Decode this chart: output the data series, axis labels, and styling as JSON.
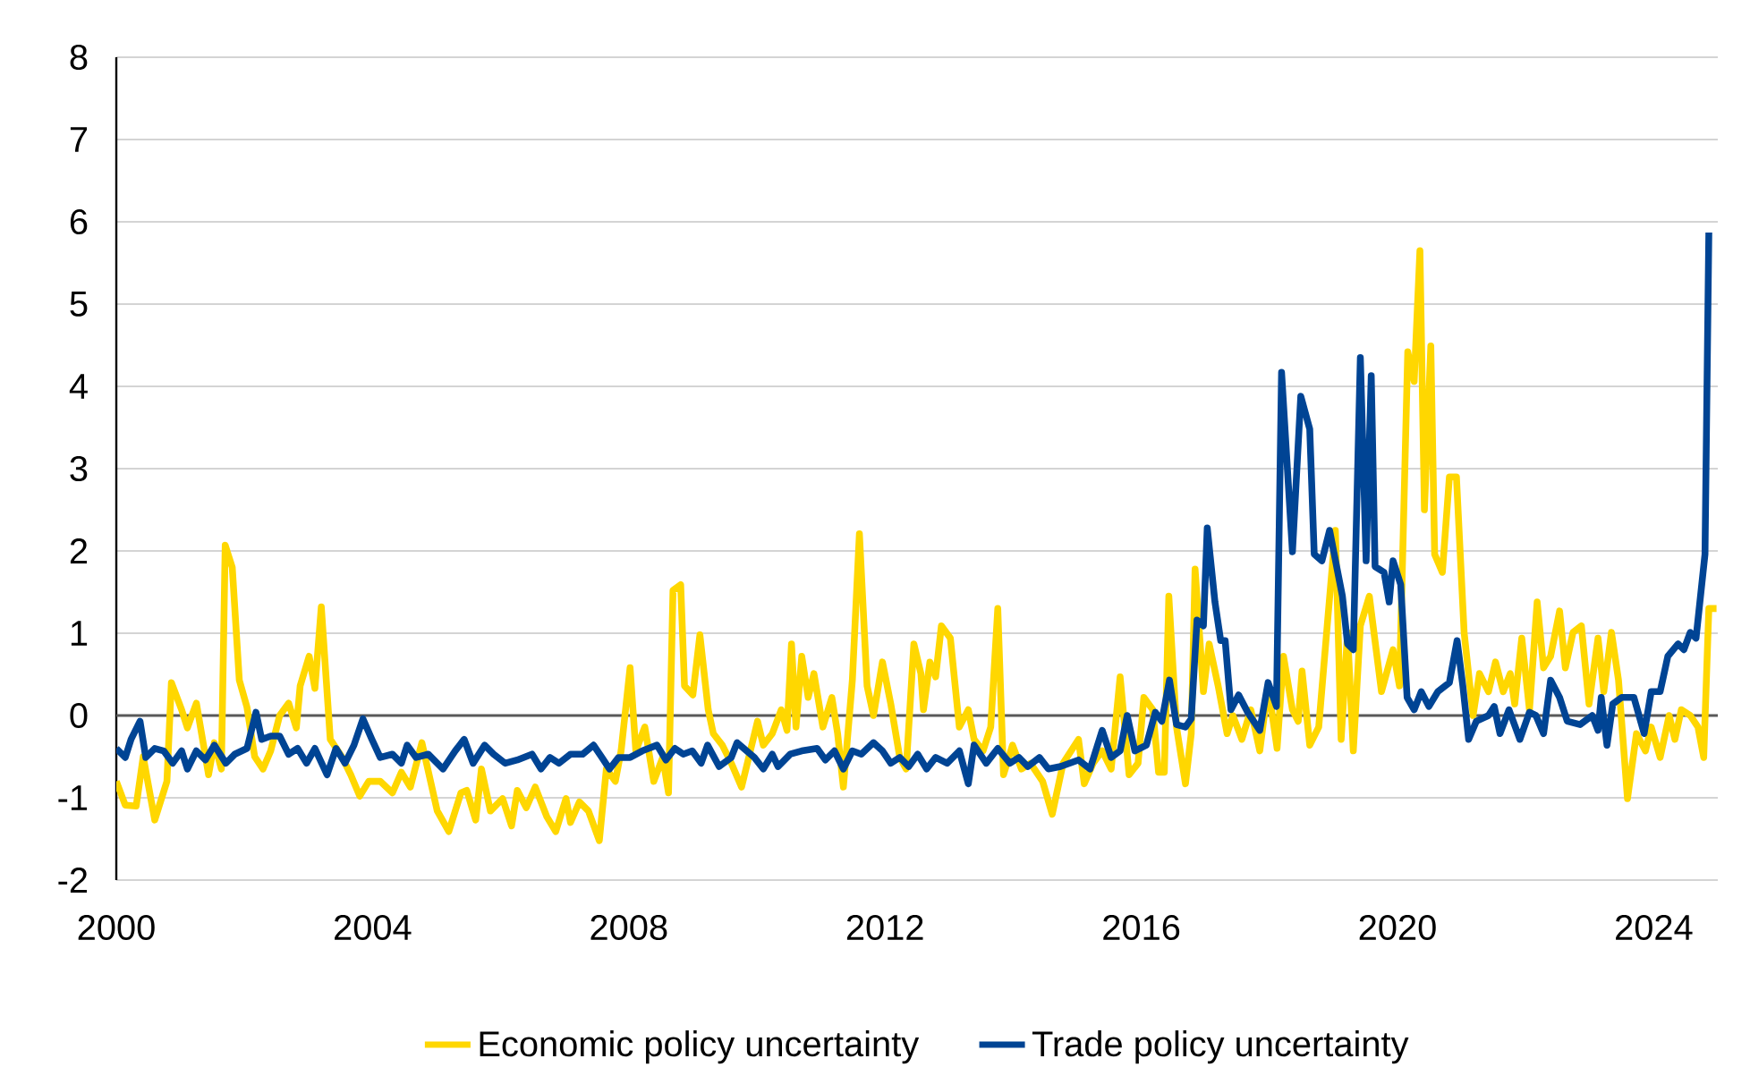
{
  "chart_data": {
    "type": "line",
    "xlim": [
      2000,
      2025
    ],
    "xticks": [
      2000,
      2004,
      2008,
      2012,
      2016,
      2020,
      2024
    ],
    "ylim": [
      -2,
      8
    ],
    "yticks": [
      -2,
      -1,
      0,
      1,
      2,
      3,
      4,
      5,
      6,
      7,
      8
    ],
    "grid": "y",
    "legend": "bottom",
    "ref_lines": [
      {
        "axis": "y",
        "value": 0,
        "color": "#595959"
      }
    ],
    "series": [
      {
        "name": "Economic policy uncertainty",
        "color": "#ffd700",
        "x": [
          2000.0,
          2000.14,
          2000.31,
          2000.42,
          2000.6,
          2000.79,
          2000.86,
          2001.02,
          2001.11,
          2001.25,
          2001.44,
          2001.53,
          2001.64,
          2001.7,
          2001.81,
          2001.92,
          2002.04,
          2002.16,
          2002.29,
          2002.41,
          2002.55,
          2002.69,
          2002.81,
          2002.87,
          2003.01,
          2003.1,
          2003.2,
          2003.34,
          2003.52,
          2003.66,
          2003.8,
          2003.94,
          2004.12,
          2004.31,
          2004.45,
          2004.59,
          2004.77,
          2005.01,
          2005.19,
          2005.38,
          2005.47,
          2005.61,
          2005.7,
          2005.84,
          2006.03,
          2006.17,
          2006.26,
          2006.4,
          2006.54,
          2006.72,
          2006.86,
          2007.02,
          2007.09,
          2007.23,
          2007.37,
          2007.54,
          2007.65,
          2007.79,
          2007.88,
          2008.02,
          2008.11,
          2008.25,
          2008.39,
          2008.53,
          2008.62,
          2008.69,
          2008.81,
          2008.87,
          2009.0,
          2009.11,
          2009.24,
          2009.32,
          2009.46,
          2009.6,
          2009.76,
          2010.01,
          2010.1,
          2010.24,
          2010.38,
          2010.47,
          2010.54,
          2010.61,
          2010.7,
          2010.8,
          2010.89,
          2011.03,
          2011.17,
          2011.26,
          2011.35,
          2011.49,
          2011.6,
          2011.72,
          2011.82,
          2011.96,
          2012.09,
          2012.23,
          2012.33,
          2012.45,
          2012.56,
          2012.6,
          2012.7,
          2012.79,
          2012.88,
          2013.02,
          2013.16,
          2013.3,
          2013.39,
          2013.53,
          2013.65,
          2013.76,
          2013.85,
          2013.99,
          2014.13,
          2014.27,
          2014.46,
          2014.61,
          2014.78,
          2015.02,
          2015.11,
          2015.25,
          2015.39,
          2015.53,
          2015.67,
          2015.81,
          2015.95,
          2016.04,
          2016.18,
          2016.27,
          2016.36,
          2016.43,
          2016.55,
          2016.69,
          2016.78,
          2016.84,
          2016.97,
          2017.06,
          2017.2,
          2017.34,
          2017.43,
          2017.57,
          2017.71,
          2017.85,
          2017.98,
          2018.12,
          2018.22,
          2018.36,
          2018.45,
          2018.51,
          2018.63,
          2018.77,
          2018.91,
          2019.03,
          2019.12,
          2019.22,
          2019.31,
          2019.42,
          2019.56,
          2019.75,
          2019.93,
          2020.03,
          2020.16,
          2020.26,
          2020.35,
          2020.42,
          2020.52,
          2020.58,
          2020.7,
          2020.81,
          2020.92,
          2021.04,
          2021.18,
          2021.28,
          2021.42,
          2021.53,
          2021.65,
          2021.76,
          2021.83,
          2021.94,
          2022.06,
          2022.18,
          2022.28,
          2022.39,
          2022.53,
          2022.62,
          2022.74,
          2022.87,
          2022.99,
          2023.13,
          2023.22,
          2023.34,
          2023.45,
          2023.59,
          2023.73,
          2023.87,
          2023.96,
          2024.1,
          2024.24,
          2024.33,
          2024.43,
          2024.57,
          2024.69,
          2024.78,
          2024.86,
          2024.98
        ],
        "values": [
          -0.8,
          -1.09,
          -1.1,
          -0.5,
          -1.27,
          -0.8,
          0.4,
          0.07,
          -0.15,
          0.15,
          -0.72,
          -0.33,
          -0.65,
          2.07,
          1.8,
          0.43,
          0.1,
          -0.5,
          -0.65,
          -0.43,
          0,
          0.15,
          -0.15,
          0.36,
          0.72,
          0.33,
          1.32,
          -0.29,
          -0.5,
          -0.72,
          -0.98,
          -0.8,
          -0.8,
          -0.94,
          -0.69,
          -0.87,
          -0.33,
          -1.16,
          -1.41,
          -0.94,
          -0.91,
          -1.27,
          -0.65,
          -1.16,
          -1.01,
          -1.34,
          -0.91,
          -1.12,
          -0.87,
          -1.23,
          -1.41,
          -1.01,
          -1.3,
          -1.05,
          -1.16,
          -1.52,
          -0.65,
          -0.8,
          -0.43,
          0.58,
          -0.43,
          -0.14,
          -0.8,
          -0.51,
          -0.94,
          1.52,
          1.59,
          0.36,
          0.25,
          0.98,
          0.07,
          -0.22,
          -0.36,
          -0.58,
          -0.87,
          -0.07,
          -0.36,
          -0.22,
          0.07,
          -0.18,
          0.87,
          -0.14,
          0.72,
          0.22,
          0.51,
          -0.14,
          0.22,
          -0.22,
          -0.87,
          0.43,
          2.21,
          0.36,
          0,
          0.65,
          0.14,
          -0.51,
          -0.65,
          0.87,
          0.51,
          0.07,
          0.65,
          0.47,
          1.09,
          0.94,
          -0.14,
          0.07,
          -0.29,
          -0.43,
          -0.14,
          1.3,
          -0.72,
          -0.36,
          -0.65,
          -0.58,
          -0.8,
          -1.2,
          -0.58,
          -0.29,
          -0.83,
          -0.58,
          -0.43,
          -0.65,
          0.47,
          -0.72,
          -0.58,
          0.22,
          0.07,
          -0.69,
          -0.69,
          1.45,
          -0.14,
          -0.83,
          -0.22,
          1.78,
          0.29,
          0.87,
          0.36,
          -0.22,
          0,
          -0.29,
          0.07,
          -0.43,
          0.36,
          -0.4,
          0.72,
          0.07,
          -0.07,
          0.54,
          -0.36,
          -0.14,
          1.16,
          2.25,
          -0.29,
          1.01,
          -0.43,
          1.09,
          1.45,
          0.29,
          0.8,
          0.36,
          4.42,
          4.06,
          5.65,
          2.5,
          4.49,
          1.96,
          1.74,
          2.9,
          2.9,
          1.01,
          0,
          0.51,
          0.29,
          0.65,
          0.29,
          0.51,
          0.14,
          0.94,
          0.07,
          1.38,
          0.58,
          0.72,
          1.27,
          0.58,
          1.01,
          1.09,
          0.14,
          0.94,
          0.29,
          1.01,
          0.43,
          -1.01,
          -0.22,
          -0.43,
          -0.14,
          -0.51,
          0,
          -0.29,
          0.07,
          0,
          -0.14,
          -0.51,
          1.3,
          1.3
        ]
      },
      {
        "name": "Trade policy uncertainty",
        "color": "#004494",
        "x": [
          2000.0,
          2000.14,
          2000.23,
          2000.37,
          2000.46,
          2000.6,
          2000.74,
          2000.88,
          2001.02,
          2001.11,
          2001.25,
          2001.39,
          2001.53,
          2001.71,
          2001.85,
          2002.04,
          2002.18,
          2002.27,
          2002.41,
          2002.55,
          2002.69,
          2002.83,
          2002.97,
          2003.1,
          2003.29,
          2003.43,
          2003.57,
          2003.71,
          2003.85,
          2003.99,
          2004.12,
          2004.31,
          2004.45,
          2004.54,
          2004.68,
          2004.87,
          2005.1,
          2005.29,
          2005.43,
          2005.57,
          2005.75,
          2005.89,
          2006.07,
          2006.26,
          2006.49,
          2006.63,
          2006.77,
          2006.91,
          2007.09,
          2007.28,
          2007.45,
          2007.58,
          2007.7,
          2007.84,
          2008.02,
          2008.21,
          2008.44,
          2008.58,
          2008.72,
          2008.85,
          2008.99,
          2009.13,
          2009.23,
          2009.41,
          2009.6,
          2009.69,
          2009.96,
          2010.1,
          2010.24,
          2010.33,
          2010.52,
          2010.7,
          2010.94,
          2011.07,
          2011.21,
          2011.35,
          2011.49,
          2011.63,
          2011.82,
          2011.96,
          2012.09,
          2012.23,
          2012.37,
          2012.51,
          2012.65,
          2012.79,
          2012.97,
          2013.16,
          2013.3,
          2013.39,
          2013.58,
          2013.76,
          2013.95,
          2014.09,
          2014.23,
          2014.41,
          2014.55,
          2014.74,
          2015.02,
          2015.2,
          2015.39,
          2015.53,
          2015.67,
          2015.78,
          2015.9,
          2016.08,
          2016.22,
          2016.32,
          2016.44,
          2016.55,
          2016.69,
          2016.78,
          2016.87,
          2016.97,
          2017.03,
          2017.15,
          2017.24,
          2017.31,
          2017.4,
          2017.52,
          2017.66,
          2017.85,
          2017.98,
          2018.11,
          2018.19,
          2018.36,
          2018.49,
          2018.63,
          2018.7,
          2018.82,
          2018.94,
          2019.05,
          2019.14,
          2019.22,
          2019.31,
          2019.42,
          2019.51,
          2019.59,
          2019.65,
          2019.79,
          2019.87,
          2019.93,
          2020.05,
          2020.15,
          2020.26,
          2020.37,
          2020.49,
          2020.63,
          2020.81,
          2020.93,
          2021.02,
          2021.11,
          2021.23,
          2021.42,
          2021.51,
          2021.6,
          2021.74,
          2021.91,
          2022.06,
          2022.16,
          2022.28,
          2022.39,
          2022.53,
          2022.65,
          2022.85,
          2023.04,
          2023.13,
          2023.18,
          2023.27,
          2023.36,
          2023.5,
          2023.69,
          2023.85,
          2023.96,
          2024.1,
          2024.22,
          2024.38,
          2024.47,
          2024.57,
          2024.66,
          2024.8,
          2024.86
        ],
        "values": [
          -0.4,
          -0.51,
          -0.29,
          -0.07,
          -0.51,
          -0.4,
          -0.43,
          -0.58,
          -0.43,
          -0.65,
          -0.43,
          -0.54,
          -0.36,
          -0.58,
          -0.47,
          -0.4,
          0.04,
          -0.29,
          -0.25,
          -0.25,
          -0.47,
          -0.4,
          -0.58,
          -0.4,
          -0.72,
          -0.4,
          -0.58,
          -0.36,
          -0.04,
          -0.29,
          -0.51,
          -0.47,
          -0.58,
          -0.36,
          -0.51,
          -0.47,
          -0.65,
          -0.43,
          -0.29,
          -0.58,
          -0.36,
          -0.47,
          -0.58,
          -0.54,
          -0.47,
          -0.65,
          -0.51,
          -0.58,
          -0.47,
          -0.47,
          -0.36,
          -0.51,
          -0.65,
          -0.51,
          -0.51,
          -0.43,
          -0.36,
          -0.54,
          -0.4,
          -0.47,
          -0.43,
          -0.58,
          -0.36,
          -0.62,
          -0.51,
          -0.33,
          -0.51,
          -0.65,
          -0.47,
          -0.62,
          -0.47,
          -0.43,
          -0.4,
          -0.54,
          -0.43,
          -0.65,
          -0.43,
          -0.47,
          -0.33,
          -0.43,
          -0.58,
          -0.51,
          -0.62,
          -0.47,
          -0.65,
          -0.51,
          -0.58,
          -0.43,
          -0.83,
          -0.36,
          -0.58,
          -0.4,
          -0.58,
          -0.51,
          -0.62,
          -0.51,
          -0.65,
          -0.62,
          -0.54,
          -0.65,
          -0.18,
          -0.51,
          -0.43,
          0,
          -0.43,
          -0.36,
          0.04,
          -0.07,
          0.43,
          -0.11,
          -0.14,
          -0.04,
          1.16,
          1.09,
          2.28,
          1.38,
          0.91,
          0.91,
          0.07,
          0.25,
          0.04,
          -0.18,
          0.4,
          0.11,
          4.17,
          1.99,
          3.88,
          3.48,
          1.96,
          1.88,
          2.25,
          1.81,
          1.45,
          0.87,
          0.8,
          4.35,
          1.88,
          4.13,
          1.81,
          1.74,
          1.38,
          1.88,
          1.59,
          0.22,
          0.07,
          0.29,
          0.11,
          0.29,
          0.4,
          0.91,
          0.36,
          -0.29,
          -0.07,
          0,
          0.11,
          -0.22,
          0.07,
          -0.29,
          0.04,
          0,
          -0.22,
          0.43,
          0.22,
          -0.07,
          -0.11,
          0,
          -0.18,
          0.22,
          -0.36,
          0.14,
          0.22,
          0.22,
          -0.22,
          0.29,
          0.29,
          0.72,
          0.87,
          0.8,
          1.01,
          0.94,
          1.96,
          5.87
        ]
      }
    ]
  }
}
